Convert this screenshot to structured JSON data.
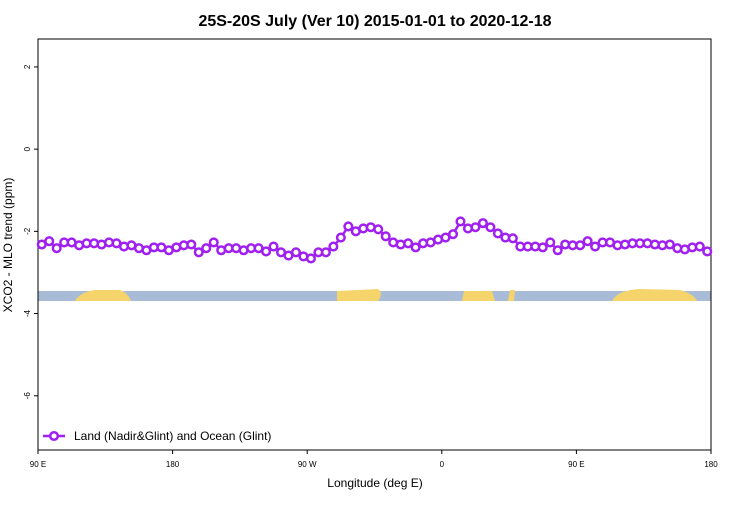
{
  "chart_data": {
    "type": "line",
    "title": "25S-20S July (Ver 10)   2015-01-01 to 2020-12-18",
    "x_label": "Longitude (deg E)",
    "y_label": "XCO2 - MLO trend (ppm)",
    "x": [
      92.5,
      97.5,
      102.5,
      107.5,
      112.5,
      117.5,
      122.5,
      127.5,
      132.5,
      137.5,
      142.5,
      147.5,
      152.5,
      157.5,
      162.5,
      167.5,
      172.5,
      177.5,
      182.5,
      187.5,
      192.5,
      197.5,
      202.5,
      207.5,
      212.5,
      217.5,
      222.5,
      227.5,
      232.5,
      237.5,
      242.5,
      247.5,
      252.5,
      257.5,
      262.5,
      267.5,
      272.5,
      277.5,
      282.5,
      287.5,
      292.5,
      297.5,
      302.5,
      307.5,
      312.5,
      317.5,
      322.5,
      327.5,
      332.5,
      337.5,
      342.5,
      347.5,
      352.5,
      357.5,
      362.5,
      367.5,
      372.5,
      377.5,
      382.5,
      387.5,
      392.5,
      397.5,
      402.5,
      407.5,
      412.5,
      417.5,
      422.5,
      427.5,
      432.5,
      437.5,
      442.5,
      447.5,
      452.5,
      457.5,
      462.5,
      467.5,
      472.5,
      477.5,
      482.5,
      487.5,
      492.5,
      497.5,
      502.5,
      507.5,
      512.5,
      517.5,
      522.5,
      527.5,
      532.5,
      537.5
    ],
    "series": [
      {
        "name": "Land (Nadir&Glint) and Ocean (Glint)",
        "color": "#a020f0",
        "values": [
          -2.32,
          -2.24,
          -2.41,
          -2.27,
          -2.27,
          -2.34,
          -2.29,
          -2.29,
          -2.32,
          -2.27,
          -2.29,
          -2.37,
          -2.34,
          -2.41,
          -2.46,
          -2.39,
          -2.39,
          -2.46,
          -2.39,
          -2.34,
          -2.32,
          -2.51,
          -2.41,
          -2.27,
          -2.46,
          -2.41,
          -2.41,
          -2.46,
          -2.41,
          -2.41,
          -2.49,
          -2.37,
          -2.51,
          -2.59,
          -2.51,
          -2.61,
          -2.66,
          -2.51,
          -2.51,
          -2.37,
          -2.15,
          -1.88,
          -2.0,
          -1.93,
          -1.9,
          -1.95,
          -2.12,
          -2.27,
          -2.32,
          -2.29,
          -2.39,
          -2.29,
          -2.27,
          -2.2,
          -2.15,
          -2.07,
          -1.76,
          -1.93,
          -1.9,
          -1.8,
          -1.9,
          -2.05,
          -2.15,
          -2.17,
          -2.37,
          -2.37,
          -2.37,
          -2.39,
          -2.27,
          -2.46,
          -2.32,
          -2.34,
          -2.34,
          -2.24,
          -2.37,
          -2.27,
          -2.27,
          -2.34,
          -2.32,
          -2.29,
          -2.29,
          -2.29,
          -2.32,
          -2.34,
          -2.32,
          -2.41,
          -2.44,
          -2.39,
          -2.37,
          -2.49
        ]
      }
    ],
    "xlim": [
      90,
      540
    ],
    "xticks": [
      {
        "value": 90,
        "label": "90 E"
      },
      180,
      {
        "value": 270,
        "label": "90 W"
      },
      {
        "value": 360,
        "label": "0"
      },
      {
        "value": 450,
        "label": "90 E"
      },
      {
        "value": 540,
        "label": "180"
      }
    ],
    "ylim": [
      -7.32,
      2.68
    ],
    "yticks": [
      2,
      0,
      -2,
      -4,
      -6
    ],
    "legend": "bottom-left"
  }
}
